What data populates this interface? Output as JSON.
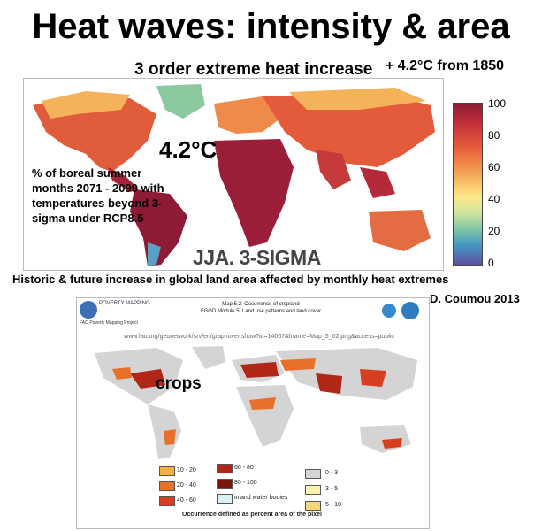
{
  "title": "Heat waves: intensity & area",
  "subtitle": "3 order extreme heat increase",
  "subtitle_right": "+ 4.2°C from 1850",
  "map1": {
    "temperature_label": "4.2°C",
    "description": "% of boreal summer months 2071 - 2099 with temperatures beyond 3-sigma under RCP8.5",
    "season_label": "JJA. 3-SIGMA",
    "colorbar_ticks": [
      "100",
      "80",
      "60",
      "40",
      "20",
      "0"
    ]
  },
  "caption": "Historic & future increase in  global land area affected by monthly heat extremes",
  "credit": "D. Coumou 2013",
  "map2": {
    "logo_text": "POVERTY MAPPING",
    "logo_sub": "FAO Poverty Mapping Project",
    "title_line1": "Map 5.2: Occurrence of cropland",
    "title_line2": "FGGD Module 5: Land use patterns and land cover",
    "url": "www.fao.org/geonetwork/srv/en/graphover.show?id=14067&fname=Map_5_02.png&access=public",
    "label": "crops",
    "legend": [
      {
        "label": "10 - 20",
        "color": "#f7b13a"
      },
      {
        "label": "20 - 40",
        "color": "#e8702a"
      },
      {
        "label": "40 - 60",
        "color": "#d63f1f"
      },
      {
        "label": "60 - 80",
        "color": "#b22618"
      },
      {
        "label": "80 - 100",
        "color": "#7a1510"
      },
      {
        "label": "inland water bodies",
        "color": "#d8f2f7"
      },
      {
        "label": "0 - 3",
        "color": "#d4d4d4"
      },
      {
        "label": "3 - 5",
        "color": "#fbf2b0"
      },
      {
        "label": "5 - 10",
        "color": "#f7d77a"
      }
    ],
    "footer": "Occurrence defined as percent area of the pixel"
  }
}
